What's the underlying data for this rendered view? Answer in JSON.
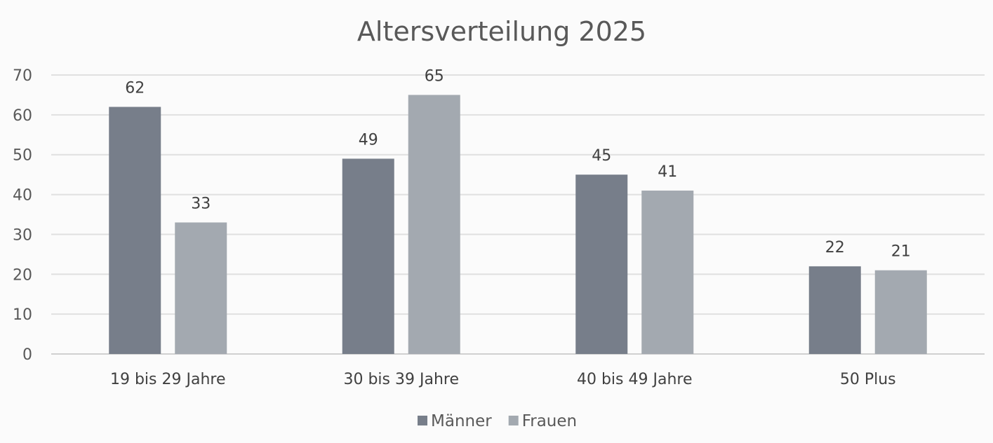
{
  "chart_data": {
    "type": "bar",
    "title": "Altersverteilung 2025",
    "xlabel": "",
    "ylabel": "",
    "categories": [
      "19 bis 29 Jahre",
      "30 bis 39 Jahre",
      "40 bis 49 Jahre",
      "50 Plus"
    ],
    "series": [
      {
        "name": "Männer",
        "values": [
          62,
          49,
          45,
          22
        ],
        "color": "#777e8a"
      },
      {
        "name": "Frauen",
        "values": [
          33,
          65,
          41,
          21
        ],
        "color": "#a3a9b0"
      }
    ],
    "ylim": [
      0,
      70
    ],
    "yticks": [
      "0",
      "10",
      "20",
      "30",
      "40",
      "50",
      "60",
      "70"
    ],
    "grid": true,
    "legend": "bottom",
    "data_labels": true
  }
}
